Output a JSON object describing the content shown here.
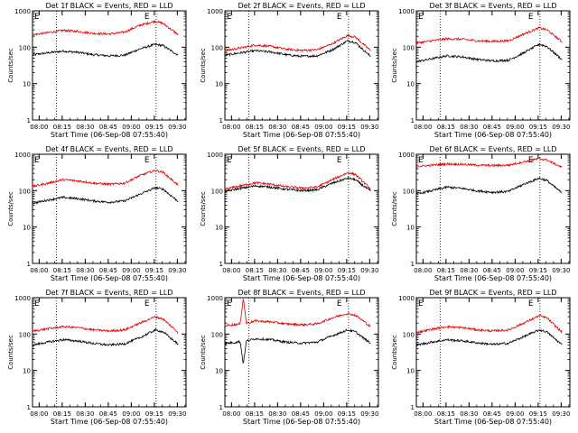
{
  "chart_data": [
    {
      "type": "line",
      "title": "Det 1f BLACK = Events, RED = LLD",
      "xlabel": "Start Time (06-Sep-08 07:55:40)",
      "ylabel": "Counts/sec",
      "x_ticks": [
        "08:00",
        "08:15",
        "08:30",
        "08:45",
        "09:00",
        "09:15",
        "09:30"
      ],
      "y_ticks": [
        "1",
        "10",
        "100",
        "1000"
      ],
      "yscale": "log",
      "ylim": [
        1,
        1000
      ],
      "markers": [
        "E",
        "E"
      ],
      "series": [
        {
          "name": "Events",
          "color": "#000000",
          "points": [
            [
              0,
              62
            ],
            [
              10,
              70
            ],
            [
              20,
              78
            ],
            [
              30,
              72
            ],
            [
              40,
              62
            ],
            [
              50,
              58
            ],
            [
              60,
              60
            ],
            [
              70,
              90
            ],
            [
              80,
              120
            ],
            [
              85,
              110
            ],
            [
              95,
              60
            ]
          ]
        },
        {
          "name": "LLD",
          "color": "#e00000",
          "points": [
            [
              0,
              220
            ],
            [
              10,
              250
            ],
            [
              20,
              290
            ],
            [
              30,
              270
            ],
            [
              40,
              240
            ],
            [
              50,
              230
            ],
            [
              60,
              260
            ],
            [
              70,
              400
            ],
            [
              80,
              520
            ],
            [
              85,
              450
            ],
            [
              95,
              220
            ]
          ]
        }
      ]
    },
    {
      "type": "line",
      "title": "Det 2f BLACK = Events, RED = LLD",
      "xlabel": "Start Time (06-Sep-08 07:55:40)",
      "ylabel": "Counts/sec",
      "x_ticks": [
        "08:00",
        "08:15",
        "08:30",
        "08:45",
        "09:00",
        "09:15",
        "09:30"
      ],
      "y_ticks": [
        "1",
        "10",
        "100",
        "1000"
      ],
      "yscale": "log",
      "ylim": [
        1,
        1000
      ],
      "markers": [
        "E",
        "E"
      ],
      "series": [
        {
          "name": "Events",
          "color": "#000000",
          "points": [
            [
              0,
              60
            ],
            [
              10,
              70
            ],
            [
              20,
              80
            ],
            [
              30,
              74
            ],
            [
              40,
              62
            ],
            [
              50,
              56
            ],
            [
              60,
              58
            ],
            [
              70,
              85
            ],
            [
              80,
              150
            ],
            [
              85,
              135
            ],
            [
              95,
              55
            ]
          ]
        },
        {
          "name": "LLD",
          "color": "#e00000",
          "points": [
            [
              0,
              80
            ],
            [
              10,
              95
            ],
            [
              20,
              115
            ],
            [
              30,
              105
            ],
            [
              40,
              88
            ],
            [
              50,
              82
            ],
            [
              60,
              85
            ],
            [
              70,
              125
            ],
            [
              80,
              210
            ],
            [
              85,
              190
            ],
            [
              95,
              80
            ]
          ]
        }
      ]
    },
    {
      "type": "line",
      "title": "Det 3f BLACK = Events, RED = LLD",
      "xlabel": "Start Time (06-Sep-08 07:55:40)",
      "ylabel": "Counts/sec",
      "x_ticks": [
        "08:00",
        "08:15",
        "08:30",
        "08:45",
        "09:00",
        "09:15",
        "09:30"
      ],
      "y_ticks": [
        "1",
        "10",
        "100",
        "1000"
      ],
      "yscale": "log",
      "ylim": [
        1,
        1000
      ],
      "markers": [
        "E",
        "E"
      ],
      "series": [
        {
          "name": "Events",
          "color": "#000000",
          "points": [
            [
              0,
              40
            ],
            [
              10,
              48
            ],
            [
              20,
              58
            ],
            [
              30,
              54
            ],
            [
              40,
              46
            ],
            [
              50,
              42
            ],
            [
              60,
              44
            ],
            [
              70,
              70
            ],
            [
              80,
              120
            ],
            [
              85,
              105
            ],
            [
              95,
              45
            ]
          ]
        },
        {
          "name": "LLD",
          "color": "#e00000",
          "points": [
            [
              0,
              130
            ],
            [
              10,
              150
            ],
            [
              20,
              170
            ],
            [
              30,
              165
            ],
            [
              40,
              150
            ],
            [
              50,
              145
            ],
            [
              60,
              150
            ],
            [
              70,
              230
            ],
            [
              80,
              340
            ],
            [
              85,
              300
            ],
            [
              95,
              140
            ]
          ]
        }
      ]
    },
    {
      "type": "line",
      "title": "Det 4f BLACK = Events, RED = LLD",
      "xlabel": "Start Time (06-Sep-08 07:55:40)",
      "ylabel": "Counts/sec",
      "x_ticks": [
        "08:00",
        "08:15",
        "08:30",
        "08:45",
        "09:00",
        "09:15",
        "09:30"
      ],
      "y_ticks": [
        "1",
        "10",
        "100",
        "1000"
      ],
      "yscale": "log",
      "ylim": [
        1,
        1000
      ],
      "markers": [
        "E",
        "E"
      ],
      "series": [
        {
          "name": "Events",
          "color": "#000000",
          "points": [
            [
              0,
              45
            ],
            [
              10,
              55
            ],
            [
              20,
              65
            ],
            [
              30,
              60
            ],
            [
              40,
              52
            ],
            [
              50,
              48
            ],
            [
              60,
              52
            ],
            [
              70,
              80
            ],
            [
              80,
              120
            ],
            [
              85,
              110
            ],
            [
              95,
              50
            ]
          ]
        },
        {
          "name": "LLD",
          "color": "#e00000",
          "points": [
            [
              0,
              130
            ],
            [
              10,
              160
            ],
            [
              20,
              200
            ],
            [
              30,
              185
            ],
            [
              40,
              160
            ],
            [
              50,
              150
            ],
            [
              60,
              160
            ],
            [
              70,
              260
            ],
            [
              80,
              360
            ],
            [
              85,
              320
            ],
            [
              95,
              140
            ]
          ]
        }
      ]
    },
    {
      "type": "line",
      "title": "Det 5f BLACK = Events, RED = LLD",
      "xlabel": "Start Time (06-Sep-08 07:55:40)",
      "ylabel": "Counts/sec",
      "x_ticks": [
        "08:00",
        "08:15",
        "08:30",
        "08:45",
        "09:00",
        "09:15",
        "09:30"
      ],
      "y_ticks": [
        "1",
        "10",
        "100",
        "1000"
      ],
      "yscale": "log",
      "ylim": [
        1,
        1000
      ],
      "markers": [
        "E",
        "E"
      ],
      "series": [
        {
          "name": "Events",
          "color": "#000000",
          "points": [
            [
              0,
              95
            ],
            [
              10,
              115
            ],
            [
              20,
              135
            ],
            [
              30,
              125
            ],
            [
              40,
              108
            ],
            [
              50,
              100
            ],
            [
              60,
              105
            ],
            [
              70,
              160
            ],
            [
              80,
              220
            ],
            [
              85,
              200
            ],
            [
              95,
              95
            ]
          ]
        },
        {
          "name": "LLD",
          "color": "#e00000",
          "points": [
            [
              0,
              110
            ],
            [
              10,
              135
            ],
            [
              20,
              165
            ],
            [
              30,
              150
            ],
            [
              40,
              128
            ],
            [
              50,
              118
            ],
            [
              60,
              125
            ],
            [
              70,
              200
            ],
            [
              80,
              310
            ],
            [
              85,
              280
            ],
            [
              95,
              110
            ]
          ]
        }
      ]
    },
    {
      "type": "line",
      "title": "Det 6f BLACK = Events, RED = LLD",
      "xlabel": "Start Time (06-Sep-08 07:55:40)",
      "ylabel": "Counts/sec",
      "x_ticks": [
        "08:00",
        "08:15",
        "08:30",
        "08:45",
        "09:00",
        "09:15",
        "09:30"
      ],
      "y_ticks": [
        "1",
        "10",
        "100",
        "1000"
      ],
      "yscale": "log",
      "ylim": [
        1,
        1000
      ],
      "markers": [
        "E",
        "E"
      ],
      "series": [
        {
          "name": "Events",
          "color": "#000000",
          "points": [
            [
              0,
              80
            ],
            [
              10,
              100
            ],
            [
              20,
              125
            ],
            [
              30,
              115
            ],
            [
              40,
              98
            ],
            [
              50,
              90
            ],
            [
              60,
              95
            ],
            [
              70,
              150
            ],
            [
              80,
              220
            ],
            [
              85,
              190
            ],
            [
              95,
              85
            ]
          ]
        },
        {
          "name": "LLD",
          "color": "#e00000",
          "points": [
            [
              0,
              460
            ],
            [
              10,
              500
            ],
            [
              20,
              540
            ],
            [
              30,
              530
            ],
            [
              40,
              500
            ],
            [
              50,
              490
            ],
            [
              60,
              500
            ],
            [
              70,
              620
            ],
            [
              80,
              760
            ],
            [
              85,
              700
            ],
            [
              95,
              430
            ]
          ]
        }
      ]
    },
    {
      "type": "line",
      "title": "Det 7f BLACK = Events, RED = LLD",
      "xlabel": "Start Time (06-Sep-08 07:55:40)",
      "ylabel": "Counts/sec",
      "x_ticks": [
        "08:00",
        "08:15",
        "08:30",
        "08:45",
        "09:00",
        "09:15",
        "09:30"
      ],
      "y_ticks": [
        "1",
        "10",
        "100",
        "1000"
      ],
      "yscale": "log",
      "ylim": [
        1,
        1000
      ],
      "markers": [
        "E",
        "E"
      ],
      "series": [
        {
          "name": "Events",
          "color": "#000000",
          "points": [
            [
              0,
              50
            ],
            [
              10,
              60
            ],
            [
              20,
              70
            ],
            [
              30,
              64
            ],
            [
              40,
              55
            ],
            [
              50,
              50
            ],
            [
              60,
              54
            ],
            [
              70,
              80
            ],
            [
              80,
              130
            ],
            [
              85,
              115
            ],
            [
              95,
              52
            ]
          ]
        },
        {
          "name": "LLD",
          "color": "#e00000",
          "points": [
            [
              0,
              120
            ],
            [
              10,
              140
            ],
            [
              20,
              160
            ],
            [
              30,
              150
            ],
            [
              40,
              130
            ],
            [
              50,
              122
            ],
            [
              60,
              130
            ],
            [
              70,
              200
            ],
            [
              80,
              300
            ],
            [
              85,
              260
            ],
            [
              95,
              110
            ]
          ]
        }
      ]
    },
    {
      "type": "line",
      "title": "Det 8f BLACK = Events, RED = LLD",
      "xlabel": "Start Time (06-Sep-08 07:55:40)",
      "ylabel": "Counts/sec",
      "x_ticks": [
        "08:00",
        "08:15",
        "08:30",
        "08:45",
        "09:00",
        "09:15",
        "09:30"
      ],
      "y_ticks": [
        "1",
        "10",
        "100",
        "1000"
      ],
      "yscale": "log",
      "ylim": [
        1,
        1000
      ],
      "markers": [
        "E",
        "E"
      ],
      "series": [
        {
          "name": "Events",
          "color": "#000000",
          "points": [
            [
              0,
              55
            ],
            [
              10,
              62
            ],
            [
              12,
              15
            ],
            [
              14,
              64
            ],
            [
              20,
              75
            ],
            [
              30,
              70
            ],
            [
              40,
              60
            ],
            [
              50,
              56
            ],
            [
              60,
              60
            ],
            [
              70,
              90
            ],
            [
              80,
              130
            ],
            [
              85,
              115
            ],
            [
              95,
              55
            ]
          ]
        },
        {
          "name": "LLD",
          "color": "#e00000",
          "points": [
            [
              0,
              170
            ],
            [
              10,
              190
            ],
            [
              12,
              1000
            ],
            [
              14,
              200
            ],
            [
              20,
              230
            ],
            [
              30,
              215
            ],
            [
              40,
              190
            ],
            [
              50,
              180
            ],
            [
              60,
              190
            ],
            [
              70,
              280
            ],
            [
              80,
              370
            ],
            [
              85,
              330
            ],
            [
              95,
              160
            ]
          ]
        }
      ]
    },
    {
      "type": "line",
      "title": "Det 9f BLACK = Events, RED = LLD",
      "xlabel": "Start Time (06-Sep-08 07:55:40)",
      "ylabel": "Counts/sec",
      "x_ticks": [
        "08:00",
        "08:15",
        "08:30",
        "08:45",
        "09:00",
        "09:15",
        "09:30"
      ],
      "y_ticks": [
        "1",
        "10",
        "100",
        "1000"
      ],
      "yscale": "log",
      "ylim": [
        1,
        1000
      ],
      "markers": [
        "E",
        "E"
      ],
      "series": [
        {
          "name": "Events",
          "color": "#000000",
          "points": [
            [
              0,
              50
            ],
            [
              10,
              60
            ],
            [
              20,
              70
            ],
            [
              30,
              65
            ],
            [
              40,
              57
            ],
            [
              50,
              52
            ],
            [
              60,
              56
            ],
            [
              70,
              85
            ],
            [
              80,
              130
            ],
            [
              85,
              115
            ],
            [
              95,
              50
            ]
          ]
        },
        {
          "name": "LLD",
          "color": "#e00000",
          "points": [
            [
              0,
              110
            ],
            [
              10,
              135
            ],
            [
              20,
              160
            ],
            [
              30,
              150
            ],
            [
              40,
              130
            ],
            [
              50,
              122
            ],
            [
              60,
              130
            ],
            [
              70,
              200
            ],
            [
              80,
              320
            ],
            [
              85,
              280
            ],
            [
              95,
              110
            ]
          ]
        }
      ]
    }
  ]
}
